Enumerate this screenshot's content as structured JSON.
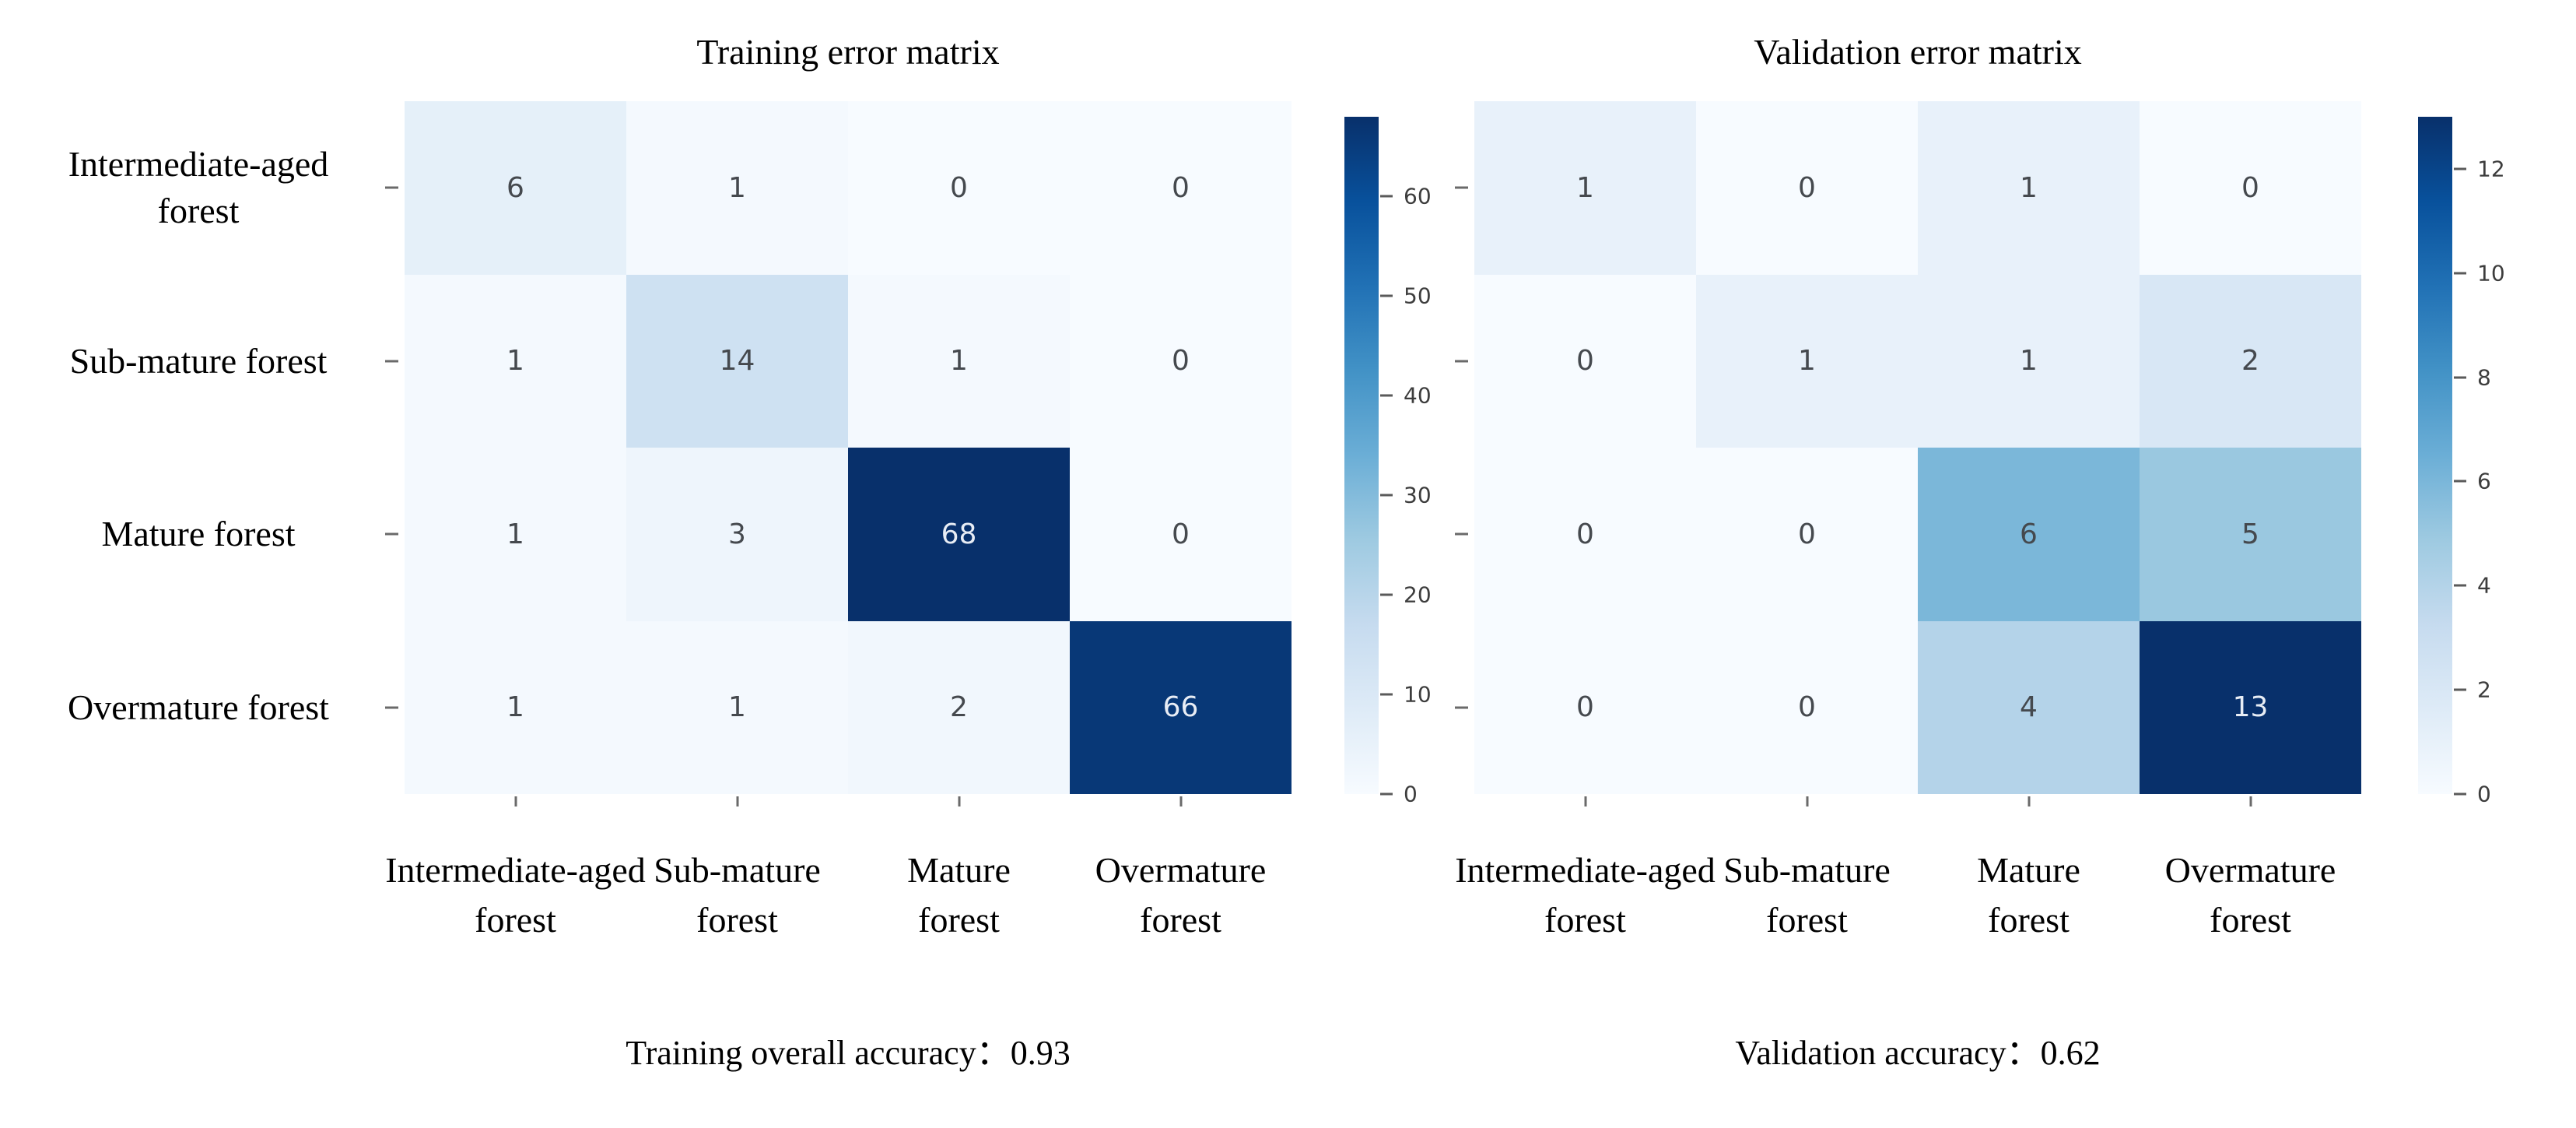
{
  "chart_data": [
    {
      "type": "heatmap",
      "title": "Training error matrix",
      "row_labels": [
        "Intermediate-aged forest",
        "Sub-mature forest",
        "Mature forest",
        "Overmature forest"
      ],
      "col_labels": [
        "Intermediate-aged forest",
        "Sub-mature forest",
        "Mature forest",
        "Overmature forest"
      ],
      "row_labels_display": [
        "Intermediate-aged\nforest",
        "Sub-mature forest",
        "Mature forest",
        "Overmature forest"
      ],
      "col_labels_display": [
        "Intermediate-aged\nforest",
        "Sub-mature\nforest",
        "Mature\nforest",
        "Overmature\nforest"
      ],
      "values": [
        [
          6,
          1,
          0,
          0
        ],
        [
          1,
          14,
          1,
          0
        ],
        [
          1,
          3,
          68,
          0
        ],
        [
          1,
          1,
          2,
          66
        ]
      ],
      "colorbar": {
        "min": 0,
        "max": 68,
        "ticks": [
          60,
          50,
          40,
          30,
          20,
          10,
          0
        ]
      },
      "caption": "Training overall accuracy：0.93",
      "accuracy": "0.93",
      "legend_position": "right",
      "grid": false
    },
    {
      "type": "heatmap",
      "title": "Validation error matrix",
      "row_labels": [
        "Intermediate-aged forest",
        "Sub-mature forest",
        "Mature forest",
        "Overmature forest"
      ],
      "col_labels": [
        "Intermediate-aged forest",
        "Sub-mature forest",
        "Mature forest",
        "Overmature forest"
      ],
      "row_labels_display": [],
      "col_labels_display": [
        "Intermediate-aged\nforest",
        "Sub-mature\nforest",
        "Mature\nforest",
        "Overmature\nforest"
      ],
      "values": [
        [
          1,
          0,
          1,
          0
        ],
        [
          0,
          1,
          1,
          2
        ],
        [
          0,
          0,
          6,
          5
        ],
        [
          0,
          0,
          4,
          13
        ]
      ],
      "colorbar": {
        "min": 0,
        "max": 13,
        "ticks": [
          12,
          10,
          8,
          6,
          4,
          2,
          0
        ]
      },
      "caption": "Validation accuracy：0.62",
      "accuracy": "0.62",
      "legend_position": "right",
      "grid": false
    }
  ],
  "colors": {
    "background": "#ffffff",
    "colormap_name": "Blues",
    "colormap_anchors": [
      "#f7fbff",
      "#deebf7",
      "#c6dbef",
      "#9ecae1",
      "#6baed6",
      "#4292c6",
      "#2171b5",
      "#08519c",
      "#08306b"
    ],
    "annotation_dark_text": "#45494e",
    "annotation_light_text": "#e8edf5",
    "tick_mark_color": "#6a6a6a",
    "tick_label_color": "#3d3d3d",
    "axis_text_color": "#000000"
  }
}
